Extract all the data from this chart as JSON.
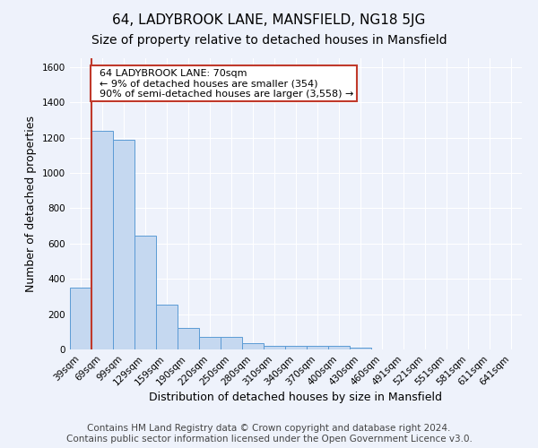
{
  "title_line1": "64, LADYBROOK LANE, MANSFIELD, NG18 5JG",
  "title_line2": "Size of property relative to detached houses in Mansfield",
  "xlabel": "Distribution of detached houses by size in Mansfield",
  "ylabel": "Number of detached properties",
  "footnote": "Contains HM Land Registry data © Crown copyright and database right 2024.\nContains public sector information licensed under the Open Government Licence v3.0.",
  "bar_labels": [
    "39sqm",
    "69sqm",
    "99sqm",
    "129sqm",
    "159sqm",
    "190sqm",
    "220sqm",
    "250sqm",
    "280sqm",
    "310sqm",
    "340sqm",
    "370sqm",
    "400sqm",
    "430sqm",
    "460sqm",
    "491sqm",
    "521sqm",
    "551sqm",
    "581sqm",
    "611sqm",
    "641sqm"
  ],
  "bar_values": [
    350,
    1240,
    1190,
    645,
    255,
    120,
    72,
    72,
    35,
    18,
    18,
    18,
    18,
    12,
    0,
    0,
    0,
    0,
    0,
    0,
    0
  ],
  "bar_color": "#c5d8f0",
  "bar_edge_color": "#5b9bd5",
  "vline_color": "#c0392b",
  "annotation_text": "  64 LADYBROOK LANE: 70sqm\n  ← 9% of detached houses are smaller (354)\n  90% of semi-detached houses are larger (3,558) →",
  "annotation_box_color": "#ffffff",
  "annotation_box_edge_color": "#c0392b",
  "ylim": [
    0,
    1650
  ],
  "yticks": [
    0,
    200,
    400,
    600,
    800,
    1000,
    1200,
    1400,
    1600
  ],
  "background_color": "#eef2fb",
  "grid_color": "#ffffff",
  "title1_fontsize": 11,
  "title2_fontsize": 10,
  "xlabel_fontsize": 9,
  "ylabel_fontsize": 9,
  "annotation_fontsize": 8,
  "footnote_fontsize": 7.5,
  "tick_fontsize": 7.5,
  "vline_x_index": 1
}
